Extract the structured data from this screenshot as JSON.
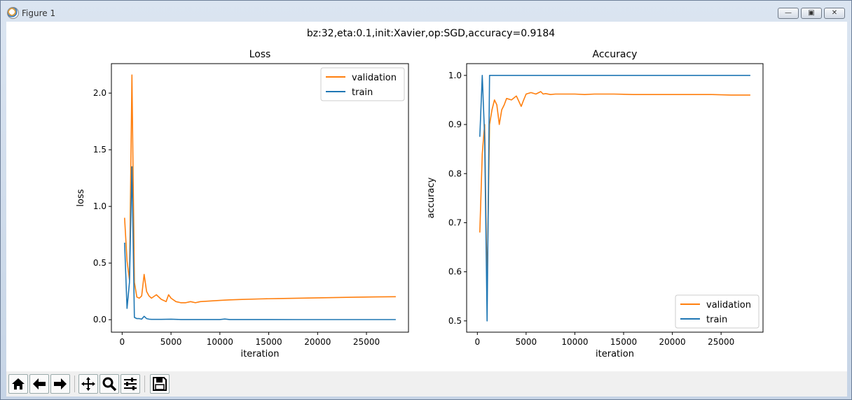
{
  "window": {
    "title": "Figure 1",
    "min_glyph": "—",
    "max_glyph": "▣",
    "close_glyph": "✕"
  },
  "figure": {
    "suptitle": "bz:32,eta:0.1,init:Xavier,op:SGD,accuracy=0.9184"
  },
  "colors": {
    "validation": "#ff7f0e",
    "train": "#1f77b4"
  },
  "toolbar": {
    "items": [
      {
        "name": "home-icon"
      },
      {
        "name": "back-icon"
      },
      {
        "name": "forward-icon"
      },
      {
        "name": "pan-icon"
      },
      {
        "name": "zoom-icon"
      },
      {
        "name": "configure-subplots-icon"
      },
      {
        "name": "save-icon"
      }
    ]
  },
  "chart_data": [
    {
      "type": "line",
      "title": "Loss",
      "xlabel": "iteration",
      "ylabel": "loss",
      "xlim": [
        -1100,
        29300
      ],
      "ylim": [
        -0.11,
        2.26
      ],
      "xticks": [
        0,
        5000,
        10000,
        15000,
        20000,
        25000
      ],
      "xtick_labels": [
        "0",
        "5000",
        "10000",
        "15000",
        "20000",
        "25000"
      ],
      "yticks": [
        0.0,
        0.5,
        1.0,
        1.5,
        2.0
      ],
      "ytick_labels": [
        "0.0",
        "0.5",
        "1.0",
        "1.5",
        "2.0"
      ],
      "legend": "upper-right",
      "series": [
        {
          "name": "validation",
          "x": [
            250,
            500,
            750,
            1000,
            1250,
            1500,
            1750,
            2000,
            2250,
            2500,
            2750,
            3000,
            3500,
            4000,
            4500,
            4750,
            5000,
            5500,
            6000,
            6500,
            7000,
            7500,
            8000,
            9000,
            10000,
            11000,
            12000,
            14000,
            16000,
            18000,
            20000,
            22000,
            24000,
            26000,
            28000
          ],
          "y": [
            0.9,
            0.52,
            0.35,
            2.16,
            0.33,
            0.2,
            0.19,
            0.21,
            0.4,
            0.25,
            0.21,
            0.19,
            0.22,
            0.18,
            0.16,
            0.22,
            0.19,
            0.16,
            0.15,
            0.15,
            0.16,
            0.15,
            0.16,
            0.165,
            0.17,
            0.175,
            0.178,
            0.183,
            0.187,
            0.19,
            0.193,
            0.196,
            0.199,
            0.201,
            0.203
          ]
        },
        {
          "name": "train",
          "x": [
            250,
            500,
            750,
            1000,
            1250,
            1500,
            1750,
            2000,
            2250,
            2500,
            2750,
            3000,
            4000,
            5000,
            6000,
            8000,
            10000,
            10500,
            11000,
            14000,
            18000,
            22000,
            26000,
            28000
          ],
          "y": [
            0.68,
            0.1,
            0.33,
            1.35,
            0.02,
            0.01,
            0.01,
            0.005,
            0.03,
            0.01,
            0.005,
            0.003,
            0.003,
            0.005,
            0.002,
            0.002,
            0.002,
            0.006,
            0.002,
            0.002,
            0.001,
            0.001,
            0.001,
            0.001
          ]
        }
      ]
    },
    {
      "type": "line",
      "title": "Accuracy",
      "xlabel": "iteration",
      "ylabel": "accuracy",
      "xlim": [
        -1100,
        29300
      ],
      "ylim": [
        0.477,
        1.024
      ],
      "xticks": [
        0,
        5000,
        10000,
        15000,
        20000,
        25000
      ],
      "xtick_labels": [
        "0",
        "5000",
        "10000",
        "15000",
        "20000",
        "25000"
      ],
      "yticks": [
        0.5,
        0.6,
        0.7,
        0.8,
        0.9,
        1.0
      ],
      "ytick_labels": [
        "0.5",
        "0.6",
        "0.7",
        "0.8",
        "0.9",
        "1.0"
      ],
      "legend": "lower-right",
      "series": [
        {
          "name": "validation",
          "x": [
            250,
            500,
            750,
            1000,
            1250,
            1500,
            1750,
            2000,
            2250,
            2500,
            2750,
            3000,
            3500,
            4000,
            4500,
            4750,
            5000,
            5500,
            6000,
            6500,
            6750,
            7000,
            7500,
            8000,
            9000,
            10000,
            11000,
            12000,
            14000,
            16000,
            18000,
            20000,
            22000,
            24000,
            26000,
            28000
          ],
          "y": [
            0.68,
            0.84,
            0.9,
            0.56,
            0.9,
            0.93,
            0.95,
            0.94,
            0.9,
            0.93,
            0.94,
            0.953,
            0.95,
            0.958,
            0.937,
            0.95,
            0.962,
            0.965,
            0.962,
            0.967,
            0.962,
            0.963,
            0.961,
            0.962,
            0.962,
            0.962,
            0.961,
            0.962,
            0.962,
            0.961,
            0.961,
            0.961,
            0.961,
            0.961,
            0.96,
            0.96
          ]
        },
        {
          "name": "train",
          "x": [
            250,
            500,
            750,
            1000,
            1250,
            1500,
            5000,
            10000,
            15000,
            20000,
            25000,
            28000
          ],
          "y": [
            0.875,
            1.0,
            0.875,
            0.5,
            1.0,
            1.0,
            1.0,
            1.0,
            1.0,
            1.0,
            1.0,
            1.0
          ]
        }
      ]
    }
  ]
}
